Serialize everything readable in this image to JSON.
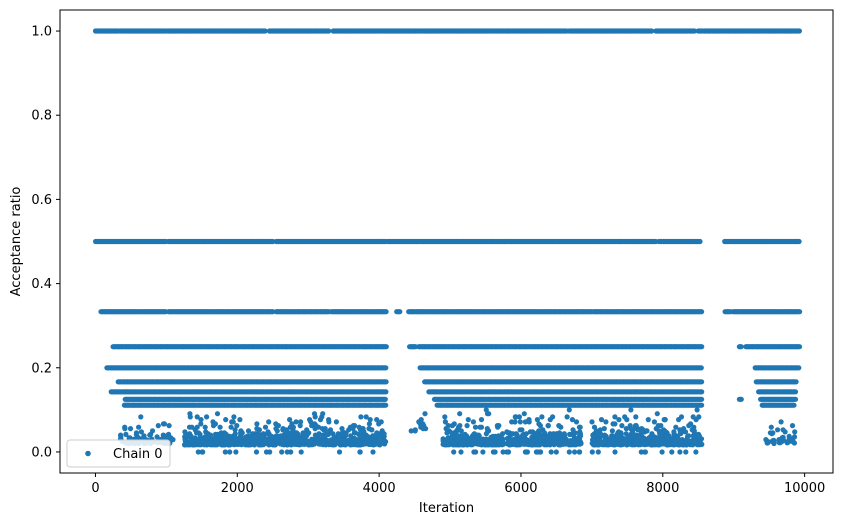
{
  "chart_data": {
    "type": "scatter",
    "title": "",
    "xlabel": "Iteration",
    "ylabel": "Acceptance ratio",
    "xlim": [
      -500,
      10400
    ],
    "ylim": [
      -0.05,
      1.05
    ],
    "xticks": [
      0,
      2000,
      4000,
      6000,
      8000,
      10000
    ],
    "yticks": [
      0.0,
      0.2,
      0.4,
      0.6,
      0.8,
      1.0
    ],
    "xtick_labels": [
      "0",
      "2000",
      "4000",
      "6000",
      "8000",
      "10000"
    ],
    "ytick_labels": [
      "0.0",
      "0.2",
      "0.4",
      "0.6",
      "0.8",
      "1.0"
    ],
    "grid": false,
    "legend_position": "lower-left",
    "color": "#1f77b4",
    "series": [
      {
        "name": "Chain 0",
        "levels": [
          {
            "y": 1.0,
            "segments": [
              [
                0,
                330
              ],
              [
                350,
                1000
              ],
              [
                1020,
                2400
              ],
              [
                2450,
                3300
              ],
              [
                3350,
                4100
              ],
              [
                4100,
                5600
              ],
              [
                5620,
                6650
              ],
              [
                6680,
                7850
              ],
              [
                7900,
                8450
              ],
              [
                8500,
                8560
              ],
              [
                8580,
                9930
              ]
            ]
          },
          {
            "y": 0.5,
            "segments": [
              [
                0,
                1000
              ],
              [
                1030,
                2500
              ],
              [
                2550,
                4100
              ],
              [
                4120,
                7900
              ],
              [
                7950,
                8530
              ],
              [
                8870,
                9930
              ]
            ]
          },
          {
            "y": 0.3333,
            "segments": [
              [
                80,
                1000
              ],
              [
                1030,
                2500
              ],
              [
                2550,
                3300
              ],
              [
                3330,
                4100
              ],
              [
                4250,
                4300
              ],
              [
                4420,
                7000
              ],
              [
                7020,
                8550
              ],
              [
                8880,
                8960
              ],
              [
                8990,
                9930
              ]
            ]
          },
          {
            "y": 0.25,
            "segments": [
              [
                250,
                4100
              ],
              [
                4430,
                4520
              ],
              [
                4560,
                8550
              ],
              [
                9080,
                9120
              ],
              [
                9170,
                9930
              ]
            ]
          },
          {
            "y": 0.2,
            "segments": [
              [
                160,
                4100
              ],
              [
                4580,
                8550
              ],
              [
                9300,
                9920
              ]
            ]
          },
          {
            "y": 0.1667,
            "segments": [
              [
                320,
                4100
              ],
              [
                4640,
                8550
              ],
              [
                9320,
                9880
              ]
            ]
          },
          {
            "y": 0.1429,
            "segments": [
              [
                220,
                4100
              ],
              [
                4700,
                8550
              ],
              [
                9350,
                9880
              ]
            ]
          },
          {
            "y": 0.125,
            "segments": [
              [
                420,
                4100
              ],
              [
                4780,
                8550
              ],
              [
                9080,
                9120
              ],
              [
                9380,
                9880
              ]
            ]
          },
          {
            "y": 0.1111,
            "segments": [
              [
                410,
                4100
              ],
              [
                4820,
                8550
              ],
              [
                9400,
                9860
              ]
            ]
          }
        ],
        "clusters": [
          {
            "x": [
              350,
              1100
            ],
            "y": [
              0.02,
              0.11
            ],
            "n": 90
          },
          {
            "x": [
              1250,
              2000
            ],
            "y": [
              0.0,
              0.1
            ],
            "n": 220
          },
          {
            "x": [
              2000,
              4100
            ],
            "y": [
              0.0,
              0.1
            ],
            "n": 600
          },
          {
            "x": [
              4450,
              4700
            ],
            "y": [
              0.05,
              0.1
            ],
            "n": 12
          },
          {
            "x": [
              4900,
              5750
            ],
            "y": [
              0.0,
              0.1
            ],
            "n": 300
          },
          {
            "x": [
              5800,
              6850
            ],
            "y": [
              0.0,
              0.1
            ],
            "n": 320
          },
          {
            "x": [
              7000,
              8550
            ],
            "y": [
              0.0,
              0.1
            ],
            "n": 520
          },
          {
            "x": [
              9450,
              9860
            ],
            "y": [
              0.02,
              0.1
            ],
            "n": 40
          }
        ]
      }
    ]
  }
}
